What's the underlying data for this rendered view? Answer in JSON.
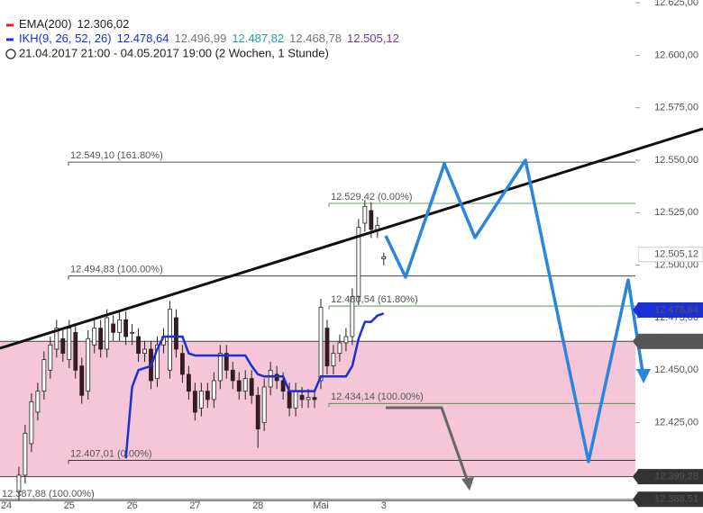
{
  "chart_data": {
    "type": "candlestick",
    "legend": [
      {
        "name": "EMA(200)",
        "color": "#e02020",
        "values": [
          "12.306,02"
        ],
        "value_colors": [
          "#222"
        ]
      },
      {
        "name": "IKH(9, 26, 52, 26)",
        "color": "#1a2fd6",
        "values": [
          "12.478,64",
          "12.496,99",
          "12.487,82",
          "12.468,78",
          "12.505,12"
        ],
        "value_colors": [
          "#1a2fd6",
          "#777",
          "#2a9ab0",
          "#777",
          "#7a3a8a"
        ]
      }
    ],
    "period": "21.04.2017 21:00 - 04.05.2017 19:00  (2 Wochen, 1 Stunde)",
    "xlim": [
      -1,
      100
    ],
    "ylim": [
      12388.4,
      12626.3
    ],
    "xticks": [
      {
        "value": 0,
        "label": "24"
      },
      {
        "value": 10,
        "label": "25"
      },
      {
        "value": 20,
        "label": "26"
      },
      {
        "value": 30,
        "label": "27"
      },
      {
        "value": 40,
        "label": "28"
      },
      {
        "value": 50,
        "label": "Mai"
      },
      {
        "value": 60,
        "label": "3"
      }
    ],
    "yticks": [
      {
        "value": 12625,
        "label": "12.625,00"
      },
      {
        "value": 12600,
        "label": "12.600,00"
      },
      {
        "value": 12575,
        "label": "12.575,00"
      },
      {
        "value": 12550,
        "label": "12.550,00"
      },
      {
        "value": 12525,
        "label": "12.525,00"
      },
      {
        "value": 12500,
        "label": "12.500,00"
      },
      {
        "value": 12475,
        "label": "12.475,00"
      },
      {
        "value": 12450,
        "label": "12.450,00"
      },
      {
        "value": 12425,
        "label": "12.425,00"
      }
    ],
    "grid": false,
    "x": [
      2,
      3,
      4,
      5,
      6,
      7,
      8,
      9,
      10,
      11,
      12,
      13,
      14,
      15,
      16,
      17,
      18,
      19,
      20,
      21,
      22,
      23,
      24,
      25,
      26,
      27,
      28,
      29,
      30,
      31,
      32,
      33,
      34,
      35,
      36,
      37,
      38,
      39,
      40,
      41,
      42,
      43,
      44,
      45,
      46,
      47,
      48,
      49,
      50,
      51,
      52,
      53,
      54,
      55,
      56,
      57,
      58,
      59,
      60
    ],
    "open": [
      12392,
      12400,
      12415,
      12430,
      12440,
      12450,
      12460,
      12465,
      12455,
      12468,
      12452,
      12440,
      12462,
      12470,
      12460,
      12472,
      12468,
      12474,
      12468,
      12466,
      12458,
      12460,
      12446,
      12462,
      12450,
      12475,
      12458,
      12448,
      12440,
      12432,
      12440,
      12436,
      12445,
      12458,
      12450,
      12445,
      12440,
      12446,
      12438,
      12425,
      12442,
      12448,
      12445,
      12440,
      12432,
      12438,
      12436,
      12437,
      12445,
      12470,
      12452,
      12458,
      12463,
      12466,
      12485,
      12520,
      12526,
      12517,
      12503
    ],
    "high": [
      12404,
      12424,
      12439,
      12444,
      12459,
      12466,
      12474,
      12469,
      12474,
      12472,
      12456,
      12469,
      12474,
      12474,
      12479,
      12476,
      12478,
      12478,
      12472,
      12470,
      12464,
      12464,
      12466,
      12470,
      12483,
      12479,
      12462,
      12452,
      12444,
      12444,
      12444,
      12449,
      12462,
      12462,
      12454,
      12449,
      12450,
      12450,
      12442,
      12446,
      12454,
      12452,
      12449,
      12444,
      12444,
      12442,
      12441,
      12441,
      12484,
      12474,
      12462,
      12467,
      12470,
      12489,
      12522,
      12531,
      12530,
      12523,
      12506
    ],
    "low": [
      12388,
      12396,
      12411,
      12426,
      12436,
      12446,
      12456,
      12454,
      12451,
      12446,
      12434,
      12436,
      12458,
      12456,
      12456,
      12464,
      12464,
      12462,
      12462,
      12454,
      12454,
      12441,
      12442,
      12458,
      12446,
      12456,
      12444,
      12436,
      12426,
      12428,
      12432,
      12432,
      12441,
      12446,
      12441,
      12436,
      12436,
      12434,
      12413,
      12421,
      12438,
      12441,
      12436,
      12428,
      12428,
      12432,
      12432,
      12432,
      12441,
      12448,
      12448,
      12454,
      12459,
      12462,
      12481,
      12516,
      12513,
      12513,
      12500
    ],
    "close": [
      12400,
      12420,
      12435,
      12440,
      12455,
      12462,
      12470,
      12458,
      12470,
      12450,
      12438,
      12465,
      12470,
      12460,
      12475,
      12468,
      12474,
      12466,
      12468,
      12458,
      12460,
      12445,
      12462,
      12466,
      12479,
      12460,
      12448,
      12440,
      12430,
      12440,
      12436,
      12445,
      12458,
      12450,
      12445,
      12440,
      12446,
      12438,
      12422,
      12442,
      12450,
      12445,
      12440,
      12432,
      12440,
      12436,
      12437,
      12436,
      12480,
      12452,
      12458,
      12463,
      12466,
      12485,
      12518,
      12528,
      12517,
      12519,
      12504
    ],
    "series": [
      {
        "color": "#1a2fd6",
        "values": [
          null,
          null,
          null,
          null,
          null,
          null,
          null,
          null,
          null,
          null,
          null,
          null,
          null,
          null,
          null,
          null,
          null,
          12408,
          12442,
          12450,
          12451,
          12452,
          12460,
          12466,
          12466,
          12466,
          12466,
          12458,
          12457,
          12457,
          12457,
          12457,
          12457,
          12457,
          12457,
          12457,
          12457,
          12452,
          12448,
          12447,
          12447,
          12447,
          12447,
          12440,
          12440,
          12440,
          12440,
          12440,
          12447,
          12447,
          12447,
          12447,
          12447,
          12452,
          12465,
          12473,
          12473,
          12476,
          12477
        ]
      }
    ],
    "levels": [
      {
        "value": 12549.1,
        "label": "12.549,10 (161.80%)",
        "color": "#222"
      },
      {
        "value": 12529.42,
        "label": "12.529,42 (0.00%)",
        "color": "#3a8a3a"
      },
      {
        "value": 12494.83,
        "label": "12.494,83 (100.00%)",
        "color": "#222"
      },
      {
        "value": 12480.54,
        "label": "12.480,54 (61.80%)",
        "color": "#3a8a3a"
      },
      {
        "value": 12434.14,
        "label": "12.434,14 (100.00%)",
        "color": "#3a8a3a"
      },
      {
        "value": 12407.01,
        "label": "12.407,01 (0.00%)",
        "color": "#222"
      },
      {
        "value": 12387.88,
        "label": "12.387,88 (100.00%)",
        "color": "#222"
      }
    ],
    "markers": [
      {
        "value": 12505.12,
        "label": "12.505,12",
        "color": "#ffffff",
        "text_color": "#444"
      },
      {
        "value": 12478.64,
        "label": "12.478,64",
        "color": "#1a2fd6",
        "text_color": "#ffffff"
      },
      {
        "value": 12463.71,
        "label": "12.463,71",
        "color": "#555555",
        "text_color": "#ffffff"
      },
      {
        "value": 12399.28,
        "label": "12.399,28",
        "color": "#333333",
        "text_color": "#ffffff"
      },
      {
        "value": 12388.51,
        "label": "12.388,51",
        "color": "#333333",
        "text_color": "#ffffff"
      }
    ]
  }
}
